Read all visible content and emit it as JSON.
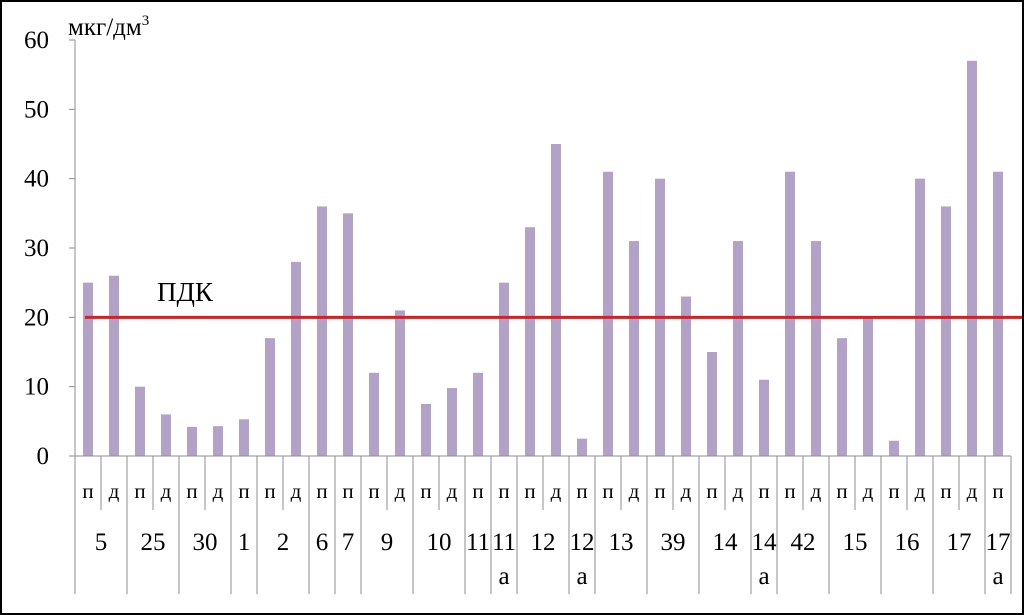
{
  "chart_data": {
    "type": "bar",
    "unit_label": "мкг/дм",
    "unit_superscript": "3",
    "ylim": [
      0,
      60
    ],
    "yticks": [
      0,
      10,
      20,
      30,
      40,
      50,
      60
    ],
    "grid": false,
    "legend": "none",
    "bar_color": "#B2A2C7",
    "reference_line": {
      "label": "ПДК",
      "value": 20,
      "color": "#E31A1C"
    },
    "categories": [
      "п",
      "д",
      "п",
      "д",
      "п",
      "д",
      "п",
      "п",
      "д",
      "п",
      "п",
      "п",
      "д",
      "п",
      "д",
      "п",
      "п",
      "п",
      "д",
      "п",
      "п",
      "д",
      "п",
      "д",
      "п",
      "д",
      "п",
      "п",
      "д",
      "п",
      "д",
      "п",
      "д",
      "п",
      "д",
      "п"
    ],
    "values": [
      25,
      26,
      10,
      6,
      4.2,
      4.3,
      5.3,
      17,
      28,
      36,
      35,
      12,
      21,
      7.5,
      9.8,
      12,
      25,
      33,
      45,
      2.5,
      41,
      31,
      40,
      23,
      15,
      31,
      11,
      41,
      31,
      17,
      20,
      2.2,
      40,
      36,
      57,
      41
    ],
    "groups": [
      {
        "label": "5",
        "label2": "",
        "count": 2
      },
      {
        "label": "25",
        "label2": "",
        "count": 2
      },
      {
        "label": "30",
        "label2": "",
        "count": 2
      },
      {
        "label": "1",
        "label2": "",
        "count": 1
      },
      {
        "label": "2",
        "label2": "",
        "count": 2
      },
      {
        "label": "6",
        "label2": "",
        "count": 1
      },
      {
        "label": "7",
        "label2": "",
        "count": 1
      },
      {
        "label": "9",
        "label2": "",
        "count": 2
      },
      {
        "label": "10",
        "label2": "",
        "count": 2
      },
      {
        "label": "11",
        "label2": "",
        "count": 1
      },
      {
        "label": "11",
        "label2": "а",
        "count": 1
      },
      {
        "label": "12",
        "label2": "",
        "count": 2
      },
      {
        "label": "12",
        "label2": "а",
        "count": 1
      },
      {
        "label": "13",
        "label2": "",
        "count": 2
      },
      {
        "label": "39",
        "label2": "",
        "count": 2
      },
      {
        "label": "14",
        "label2": "",
        "count": 2
      },
      {
        "label": "14",
        "label2": "а",
        "count": 1
      },
      {
        "label": "42",
        "label2": "",
        "count": 2
      },
      {
        "label": "15",
        "label2": "",
        "count": 2
      },
      {
        "label": "16",
        "label2": "",
        "count": 2
      },
      {
        "label": "17",
        "label2": "",
        "count": 2
      },
      {
        "label": "17",
        "label2": "а",
        "count": 1
      }
    ]
  }
}
